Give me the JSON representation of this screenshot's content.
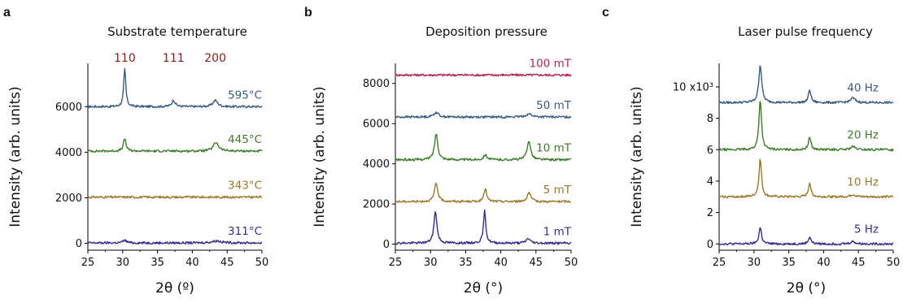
{
  "chart_data": [
    {
      "type": "line",
      "panel": "a",
      "title": "Substrate temperature",
      "xlabel": "2θ (º)",
      "ylabel": "Intensity (arb. units)",
      "xlim": [
        25,
        50
      ],
      "ylim": [
        -300,
        7900
      ],
      "xticks": [
        25,
        30,
        35,
        40,
        45,
        50
      ],
      "yticks": [
        0,
        2000,
        4000,
        6000
      ],
      "ytick_labels": [
        "0",
        "2000",
        "4000",
        "6000"
      ],
      "annotations": [
        {
          "text": "110",
          "x": 30.3
        },
        {
          "text": "111",
          "x": 37.3
        },
        {
          "text": "200",
          "x": 43.3
        }
      ],
      "series": [
        {
          "name": "595°C",
          "color": "#3a5a80",
          "baseline": 6000,
          "peaks": [
            [
              30.3,
              1650,
              0.18
            ],
            [
              37.3,
              280,
              0.3
            ],
            [
              43.3,
              280,
              0.4
            ]
          ]
        },
        {
          "name": "445°C",
          "color": "#3f7a2a",
          "baseline": 4050,
          "peaks": [
            [
              30.3,
              550,
              0.22
            ],
            [
              43.4,
              380,
              0.45
            ]
          ]
        },
        {
          "name": "343°C",
          "color": "#9a7a2a",
          "baseline": 2030,
          "peaks": []
        },
        {
          "name": "311°C",
          "color": "#3b2a8a",
          "baseline": 20,
          "peaks": [
            [
              30.3,
              120,
              0.3
            ],
            [
              43.5,
              90,
              0.8
            ]
          ]
        }
      ]
    },
    {
      "type": "line",
      "panel": "b",
      "title": "Deposition pressure",
      "xlabel": "2θ (°)",
      "ylabel": "Intensity (arb. units)",
      "xlim": [
        25,
        50
      ],
      "ylim": [
        -300,
        9000
      ],
      "xticks": [
        25,
        30,
        35,
        40,
        45,
        50
      ],
      "yticks": [
        0,
        2000,
        4000,
        6000,
        8000
      ],
      "ytick_labels": [
        "0",
        "2000",
        "4000",
        "6000",
        "8000"
      ],
      "series": [
        {
          "name": "100 mT",
          "color": "#b0245a",
          "baseline": 8420,
          "peaks": []
        },
        {
          "name": "50 mT",
          "color": "#3a5a80",
          "baseline": 6330,
          "peaks": [
            [
              30.8,
              230,
              0.4
            ],
            [
              44.0,
              150,
              0.5
            ]
          ]
        },
        {
          "name": "10 mT",
          "color": "#3f7a2a",
          "baseline": 4200,
          "peaks": [
            [
              30.8,
              1300,
              0.28
            ],
            [
              37.8,
              250,
              0.3
            ],
            [
              44.0,
              950,
              0.3
            ]
          ]
        },
        {
          "name": "5 mT",
          "color": "#9a7a2a",
          "baseline": 2120,
          "peaks": [
            [
              30.8,
              900,
              0.28
            ],
            [
              37.8,
              650,
              0.22
            ],
            [
              44.0,
              450,
              0.3
            ]
          ]
        },
        {
          "name": "1 mT",
          "color": "#3b2a8a",
          "baseline": 50,
          "peaks": [
            [
              30.7,
              1600,
              0.25
            ],
            [
              37.7,
              1600,
              0.2
            ],
            [
              43.9,
              230,
              0.35
            ]
          ]
        }
      ]
    },
    {
      "type": "line",
      "panel": "c",
      "title": "Laser pulse frequency",
      "xlabel": "2θ (°)",
      "ylabel": "Intensity (arb. units)",
      "xlim": [
        25,
        50
      ],
      "ylim": [
        -0.4,
        11.5
      ],
      "xticks": [
        25,
        30,
        35,
        40,
        45,
        50
      ],
      "yticks": [
        0,
        2,
        4,
        6,
        8,
        10
      ],
      "ytick_labels": [
        "0",
        "2",
        "4",
        "6",
        "8",
        "10 x10³"
      ],
      "series": [
        {
          "name": "40 Hz",
          "color": "#3a5a80",
          "baseline": 9.0,
          "peaks": [
            [
              30.9,
              2.4,
              0.25
            ],
            [
              38.0,
              0.8,
              0.22
            ],
            [
              44.2,
              0.3,
              0.4
            ]
          ]
        },
        {
          "name": "20 Hz",
          "color": "#3f7a2a",
          "baseline": 6.0,
          "peaks": [
            [
              30.9,
              3.2,
              0.22
            ],
            [
              38.0,
              0.8,
              0.22
            ],
            [
              44.2,
              0.2,
              0.4
            ]
          ]
        },
        {
          "name": "10 Hz",
          "color": "#9a7a2a",
          "baseline": 3.0,
          "peaks": [
            [
              30.9,
              2.4,
              0.22
            ],
            [
              38.0,
              0.9,
              0.22
            ],
            [
              44.2,
              0.15,
              0.4
            ]
          ]
        },
        {
          "name": "5 Hz",
          "color": "#3b2a8a",
          "baseline": 0.0,
          "peaks": [
            [
              30.9,
              1.05,
              0.22
            ],
            [
              38.0,
              0.45,
              0.22
            ],
            [
              44.2,
              0.15,
              0.4
            ]
          ]
        }
      ]
    }
  ]
}
